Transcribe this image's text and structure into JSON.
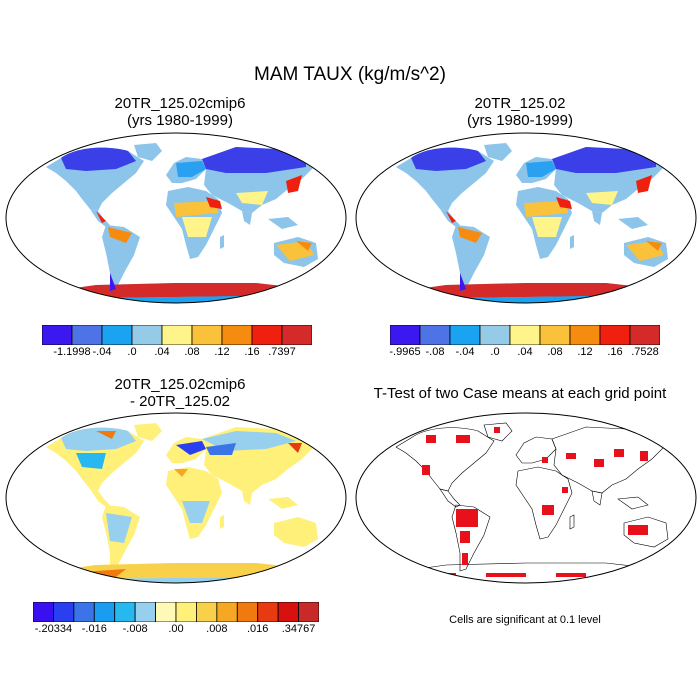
{
  "title": "MAM TAUX (kg/m/s^2)",
  "panels": [
    {
      "title_line1": "20TR_125.02cmip6",
      "title_line2": "(yrs 1980-1999)"
    },
    {
      "title_line1": "20TR_125.02",
      "title_line2": "(yrs 1980-1999)"
    },
    {
      "title_line1": "20TR_125.02cmip6",
      "title_line2": "- 20TR_125.02"
    },
    {
      "title_line1": "T-Test of two Case means at each grid point",
      "title_line2": ""
    }
  ],
  "colorbars": [
    {
      "colors": [
        "#3b18f0",
        "#4d73e6",
        "#1aa3f0",
        "#96cbe8",
        "#fff48a",
        "#f9c23a",
        "#f58c10",
        "#f0200f",
        "#d42a2a"
      ],
      "labels": [
        "-1.1998",
        "-.04",
        ".0",
        ".04",
        ".08",
        ".12",
        ".16",
        ".7397"
      ]
    },
    {
      "colors": [
        "#3b18f0",
        "#4d73e6",
        "#1aa3f0",
        "#96cbe8",
        "#fff48a",
        "#f9c23a",
        "#f58c10",
        "#f0200f",
        "#d42a2a"
      ],
      "labels": [
        "-.9965",
        "-.08",
        "-.04",
        ".0",
        ".04",
        ".08",
        ".12",
        ".16",
        ".7528"
      ]
    },
    {
      "colors": [
        "#3a10f0",
        "#2a40f0",
        "#3a74e8",
        "#1a9cf0",
        "#28b8f0",
        "#96d0ee",
        "#fff9b8",
        "#fff07a",
        "#f9d04a",
        "#f6a824",
        "#f07a10",
        "#e83a10",
        "#d81010",
        "#c82a2a"
      ],
      "labels": [
        "-.20334",
        "-.016",
        "-.008",
        ".00",
        ".008",
        ".016",
        ".34767"
      ]
    }
  ],
  "note": "Cells are significant at 0.1 level"
}
